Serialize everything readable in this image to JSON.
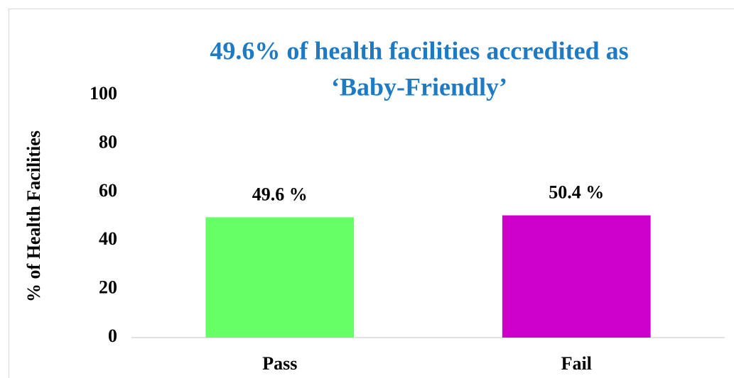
{
  "chart_data": {
    "type": "bar",
    "title": [
      "49.6% of health facilities accredited as",
      "‘Baby-Friendly’"
    ],
    "ylabel": "% of Health Facilities",
    "categories": [
      "Pass",
      "Fail"
    ],
    "values": [
      49.6,
      50.4
    ],
    "value_labels": [
      "49.6 %",
      "50.4 %"
    ],
    "colors": [
      "#66ff66",
      "#cc00cc"
    ],
    "ylim": [
      0,
      100
    ],
    "yticks": [
      0,
      20,
      40,
      60,
      80,
      100
    ],
    "grid": false
  }
}
